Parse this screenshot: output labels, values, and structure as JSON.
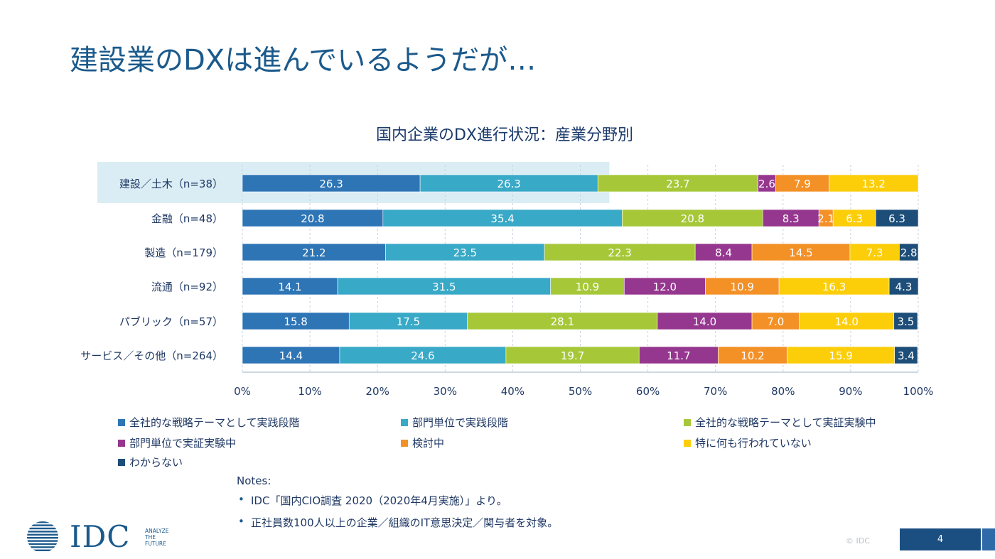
{
  "slide": {
    "title": "建設業のDXは進んでいるようだが…",
    "copyright": "© IDC",
    "page_number": "4"
  },
  "logo": {
    "brand": "IDC",
    "tagline": [
      "ANALYZE",
      "THE",
      "FUTURE"
    ]
  },
  "chart_data": {
    "type": "bar",
    "orientation": "horizontal",
    "stacked": true,
    "title": "国内企業のDX進行状況：産業分野別",
    "categories": [
      "建設／土木（n=38）",
      "金融（n=48）",
      "製造（n=179）",
      "流通（n=92）",
      "パブリック（n=57）",
      "サービス／その他（n=264）"
    ],
    "highlighted_category": "建設／土木（n=38）",
    "series": [
      {
        "name": "全社的な戦略テーマとして実践段階",
        "color": "#2e75b6",
        "values": [
          26.3,
          20.8,
          21.2,
          14.1,
          15.8,
          14.4
        ]
      },
      {
        "name": "部門単位で実践段階",
        "color": "#38a9c7",
        "values": [
          26.3,
          35.4,
          23.5,
          31.5,
          17.5,
          24.6
        ]
      },
      {
        "name": "全社的な戦略テーマとして実証実験中",
        "color": "#a6c838",
        "values": [
          23.7,
          20.8,
          22.3,
          10.9,
          28.1,
          19.7
        ]
      },
      {
        "name": "部門単位で実証実験中",
        "color": "#96378f",
        "values": [
          2.6,
          8.3,
          8.4,
          12.0,
          14.0,
          11.7
        ]
      },
      {
        "name": "検討中",
        "color": "#f39127",
        "values": [
          7.9,
          2.1,
          14.5,
          10.9,
          7.0,
          10.2
        ]
      },
      {
        "name": "特に何も行われていない",
        "color": "#fcce0a",
        "values": [
          13.2,
          6.3,
          7.3,
          16.3,
          14.0,
          15.9
        ]
      },
      {
        "name": "わからない",
        "color": "#1d4e79",
        "values": [
          0,
          6.3,
          2.8,
          4.3,
          3.5,
          3.4
        ]
      }
    ],
    "xlim": [
      0,
      100
    ],
    "xticks": [
      "0%",
      "10%",
      "20%",
      "30%",
      "40%",
      "50%",
      "60%",
      "70%",
      "80%",
      "90%",
      "100%"
    ],
    "grid": true,
    "legend_position": "bottom"
  },
  "notes": {
    "title": "Notes:",
    "items": [
      "IDC「国内CIO調査 2020（2020年4月実施）」より。",
      "正社員数100人以上の企業／組織のIT意思決定／関与者を対象。"
    ]
  }
}
